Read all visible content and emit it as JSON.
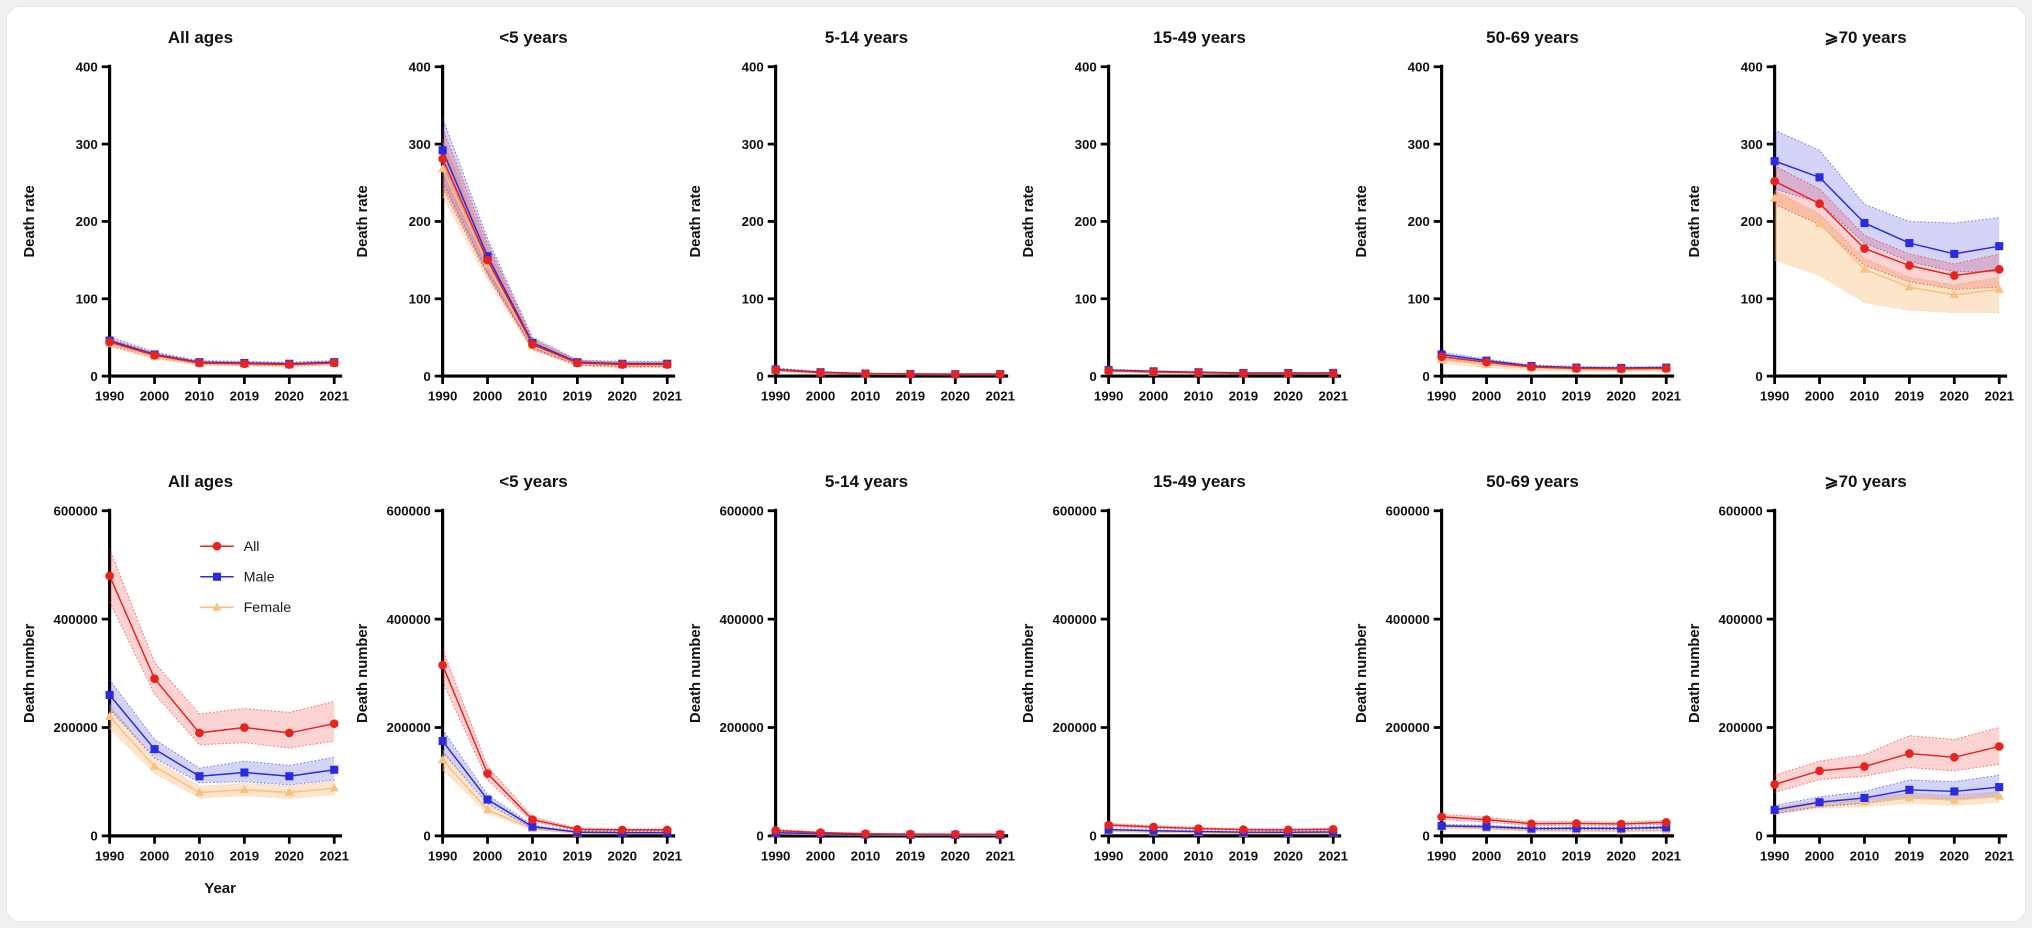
{
  "figure": {
    "xlabel": "Year",
    "x_categories": [
      "1990",
      "2000",
      "2010",
      "2019",
      "2020",
      "2021"
    ],
    "legend": [
      {
        "label": "All",
        "color": "#e8231f",
        "marker": "circle"
      },
      {
        "label": "Male",
        "color": "#2a2ae0",
        "marker": "square"
      },
      {
        "label": "Female",
        "color": "#f9c083",
        "marker": "triangle"
      }
    ],
    "rows": [
      {
        "ylabel": "Death rate",
        "ymax": 400,
        "yticks": [
          "400",
          "300",
          "200",
          "100",
          "0"
        ]
      },
      {
        "ylabel": "Death number",
        "ymax": 600000,
        "yticks": [
          "600000",
          "400000",
          "200000",
          "0"
        ]
      }
    ]
  },
  "chart_data": [
    {
      "type": "line",
      "title": "All ages",
      "row": 0,
      "series": [
        {
          "name": "All",
          "values": [
            44,
            27,
            17,
            16,
            15,
            17
          ],
          "hi": [
            48,
            30,
            19,
            18,
            17,
            19
          ],
          "lo": [
            40,
            24,
            15,
            14,
            13,
            15
          ]
        },
        {
          "name": "Male",
          "values": [
            46,
            28,
            18,
            17,
            16,
            18
          ],
          "hi": [
            51,
            31,
            20,
            19,
            18,
            20
          ],
          "lo": [
            41,
            25,
            16,
            15,
            14,
            16
          ]
        },
        {
          "name": "Female",
          "values": [
            42,
            25,
            16,
            15,
            14,
            16
          ],
          "hi": [
            46,
            28,
            18,
            17,
            16,
            18
          ],
          "lo": [
            38,
            22,
            14,
            13,
            12,
            14
          ]
        }
      ]
    },
    {
      "type": "line",
      "title": "<5 years",
      "row": 0,
      "series": [
        {
          "name": "All",
          "values": [
            281,
            150,
            41,
            17,
            15,
            15
          ],
          "hi": [
            320,
            172,
            48,
            20,
            18,
            18
          ],
          "lo": [
            243,
            130,
            35,
            14,
            12,
            12
          ]
        },
        {
          "name": "Male",
          "values": [
            292,
            155,
            43,
            18,
            16,
            16
          ],
          "hi": [
            334,
            178,
            50,
            21,
            19,
            19
          ],
          "lo": [
            250,
            133,
            36,
            15,
            13,
            13
          ]
        },
        {
          "name": "Female",
          "values": [
            268,
            144,
            39,
            16,
            14,
            14
          ],
          "hi": [
            306,
            166,
            46,
            19,
            17,
            17
          ],
          "lo": [
            232,
            124,
            33,
            13,
            11,
            11
          ]
        }
      ]
    },
    {
      "type": "line",
      "title": "5-14 years",
      "row": 0,
      "series": [
        {
          "name": "All",
          "values": [
            8,
            4.5,
            3,
            2.5,
            2.3,
            2.4
          ],
          "hi": [
            10,
            5.5,
            3.7,
            3.1,
            2.9,
            3
          ],
          "lo": [
            6.5,
            3.6,
            2.4,
            2,
            1.8,
            1.9
          ]
        },
        {
          "name": "Male",
          "values": [
            8.5,
            5,
            3.3,
            2.7,
            2.5,
            2.6
          ],
          "hi": [
            10.5,
            6,
            4,
            3.3,
            3.1,
            3.2
          ],
          "lo": [
            6.8,
            4,
            2.6,
            2.2,
            2,
            2.1
          ]
        },
        {
          "name": "Female",
          "values": [
            7,
            4,
            2.7,
            2.2,
            2,
            2.1
          ],
          "hi": [
            8.7,
            5,
            3.4,
            2.7,
            2.5,
            2.6
          ],
          "lo": [
            5.6,
            3.2,
            2.2,
            1.8,
            1.6,
            1.7
          ]
        }
      ]
    },
    {
      "type": "line",
      "title": "15-49 years",
      "row": 0,
      "series": [
        {
          "name": "All",
          "values": [
            7,
            5.5,
            4.5,
            3.5,
            3.5,
            3.6
          ],
          "hi": [
            8,
            6.3,
            5.2,
            4,
            4,
            4.1
          ],
          "lo": [
            6,
            4.7,
            3.8,
            3,
            3,
            3.1
          ]
        },
        {
          "name": "Male",
          "values": [
            7.8,
            6.2,
            5,
            4,
            4,
            4.1
          ],
          "hi": [
            9,
            7.1,
            5.8,
            4.6,
            4.6,
            4.7
          ],
          "lo": [
            6.6,
            5.3,
            4.3,
            3.4,
            3.4,
            3.5
          ]
        },
        {
          "name": "Female",
          "values": [
            6.2,
            4.8,
            3.9,
            3,
            3,
            3.1
          ],
          "hi": [
            7.1,
            5.5,
            4.5,
            3.5,
            3.5,
            3.6
          ],
          "lo": [
            5.3,
            4.1,
            3.3,
            2.6,
            2.6,
            2.6
          ]
        }
      ]
    },
    {
      "type": "line",
      "title": "50-69 years",
      "row": 0,
      "series": [
        {
          "name": "All",
          "values": [
            25,
            18,
            12,
            10,
            9.5,
            10
          ],
          "hi": [
            28,
            20,
            13.5,
            11.5,
            11,
            11.5
          ],
          "lo": [
            22,
            16,
            10.5,
            8.5,
            8,
            8.5
          ]
        },
        {
          "name": "Male",
          "values": [
            28,
            20,
            13,
            11,
            10.5,
            11
          ],
          "hi": [
            31,
            22,
            14.5,
            12.5,
            12,
            12.5
          ],
          "lo": [
            25,
            18,
            11.5,
            9.5,
            9,
            9.5
          ]
        },
        {
          "name": "Female",
          "values": [
            21,
            15,
            10,
            8.5,
            8,
            8.5
          ],
          "hi": [
            24,
            17,
            11.5,
            10,
            9.5,
            10
          ],
          "lo": [
            16,
            11,
            7.5,
            6.5,
            6,
            6.5
          ]
        }
      ]
    },
    {
      "type": "line",
      "title": "⩾70 years",
      "row": 0,
      "series": [
        {
          "name": "All",
          "values": [
            252,
            223,
            165,
            143,
            130,
            138
          ],
          "hi": [
            272,
            242,
            182,
            158,
            145,
            158
          ],
          "lo": [
            222,
            196,
            143,
            122,
            112,
            115
          ]
        },
        {
          "name": "Male",
          "values": [
            278,
            257,
            198,
            172,
            158,
            168
          ],
          "hi": [
            318,
            292,
            222,
            200,
            198,
            205
          ],
          "lo": [
            242,
            224,
            172,
            148,
            135,
            135
          ]
        },
        {
          "name": "Female",
          "values": [
            230,
            197,
            138,
            115,
            105,
            112
          ],
          "hi": [
            240,
            210,
            152,
            128,
            118,
            128
          ],
          "lo": [
            150,
            130,
            95,
            85,
            82,
            82
          ]
        }
      ]
    },
    {
      "type": "line",
      "title": "All ages",
      "row": 1,
      "legend": true,
      "series": [
        {
          "name": "All",
          "values": [
            480000,
            290000,
            190000,
            200000,
            190000,
            207000
          ],
          "hi": [
            530000,
            320000,
            225000,
            235000,
            228000,
            248000
          ],
          "lo": [
            432000,
            262000,
            168000,
            172000,
            162000,
            175000
          ]
        },
        {
          "name": "Male",
          "values": [
            260000,
            160000,
            110000,
            117000,
            110000,
            122000
          ],
          "hi": [
            288000,
            178000,
            125000,
            138000,
            130000,
            145000
          ],
          "lo": [
            234000,
            144000,
            98000,
            100000,
            94000,
            103000
          ]
        },
        {
          "name": "Female",
          "values": [
            220000,
            128000,
            80000,
            85000,
            80000,
            88000
          ],
          "hi": [
            242000,
            142000,
            92000,
            97000,
            92000,
            101000
          ],
          "lo": [
            198000,
            115000,
            70000,
            74000,
            69000,
            76000
          ]
        }
      ]
    },
    {
      "type": "line",
      "title": "<5 years",
      "row": 1,
      "series": [
        {
          "name": "All",
          "values": [
            315000,
            115000,
            30000,
            12000,
            11000,
            11000
          ],
          "hi": [
            345000,
            128000,
            35000,
            14000,
            13000,
            13000
          ],
          "lo": [
            285000,
            103000,
            26000,
            10000,
            9000,
            9000
          ]
        },
        {
          "name": "Male",
          "values": [
            175000,
            67000,
            17000,
            7000,
            6000,
            6000
          ],
          "hi": [
            196000,
            76000,
            20000,
            8500,
            7500,
            7500
          ],
          "lo": [
            155000,
            59000,
            14000,
            5500,
            5000,
            5000
          ]
        },
        {
          "name": "Female",
          "values": [
            140000,
            48000,
            13000,
            5000,
            5000,
            5000
          ],
          "hi": [
            158000,
            56000,
            16000,
            6500,
            6000,
            6000
          ],
          "lo": [
            122000,
            41000,
            11000,
            4000,
            4000,
            4000
          ]
        }
      ]
    },
    {
      "type": "line",
      "title": "5-14 years",
      "row": 1,
      "series": [
        {
          "name": "All",
          "values": [
            10000,
            6000,
            4000,
            3200,
            3000,
            3100
          ],
          "hi": [
            12000,
            7200,
            4800,
            3900,
            3600,
            3700
          ],
          "lo": [
            8000,
            4800,
            3200,
            2600,
            2400,
            2500
          ]
        },
        {
          "name": "Male",
          "values": [
            6000,
            3600,
            2500,
            2000,
            1900,
            2000
          ],
          "hi": [
            7200,
            4300,
            3000,
            2400,
            2300,
            2400
          ],
          "lo": [
            4800,
            2900,
            2000,
            1600,
            1500,
            1600
          ]
        },
        {
          "name": "Female",
          "values": [
            4500,
            2600,
            1800,
            1400,
            1350,
            1400
          ],
          "hi": [
            5400,
            3100,
            2200,
            1700,
            1600,
            1700
          ],
          "lo": [
            3600,
            2100,
            1450,
            1100,
            1050,
            1100
          ]
        }
      ]
    },
    {
      "type": "line",
      "title": "15-49 years",
      "row": 1,
      "series": [
        {
          "name": "All",
          "values": [
            20000,
            16500,
            13500,
            11500,
            11200,
            12000
          ],
          "hi": [
            23000,
            19000,
            15500,
            13200,
            12900,
            13800
          ],
          "lo": [
            17000,
            14000,
            11500,
            9800,
            9500,
            10200
          ]
        },
        {
          "name": "Male",
          "values": [
            11500,
            9500,
            8000,
            6800,
            6600,
            7100
          ],
          "hi": [
            13200,
            10900,
            9200,
            7800,
            7600,
            8200
          ],
          "lo": [
            9800,
            8100,
            6800,
            5800,
            5600,
            6000
          ]
        },
        {
          "name": "Female",
          "values": [
            8700,
            7100,
            5900,
            4900,
            4800,
            5200
          ],
          "hi": [
            10000,
            8200,
            6800,
            5600,
            5500,
            6000
          ],
          "lo": [
            7400,
            6000,
            5000,
            4200,
            4100,
            4400
          ]
        }
      ]
    },
    {
      "type": "line",
      "title": "50-69 years",
      "row": 1,
      "series": [
        {
          "name": "All",
          "values": [
            35000,
            30000,
            22500,
            23000,
            22000,
            25000
          ],
          "hi": [
            40000,
            34500,
            26000,
            26500,
            25300,
            28800
          ],
          "lo": [
            30000,
            25500,
            19000,
            19500,
            18700,
            21200
          ]
        },
        {
          "name": "Male",
          "values": [
            18500,
            17000,
            13500,
            14000,
            13700,
            15500
          ],
          "hi": [
            21300,
            19600,
            15500,
            16100,
            15800,
            17800
          ],
          "lo": [
            15700,
            14400,
            11500,
            11900,
            11600,
            13200
          ]
        },
        {
          "name": "Female",
          "values": [
            16000,
            13500,
            9800,
            9500,
            9000,
            10000
          ],
          "hi": [
            18400,
            15500,
            11300,
            10900,
            10400,
            11500
          ],
          "lo": [
            13600,
            11500,
            8300,
            8100,
            7600,
            8500
          ]
        }
      ]
    },
    {
      "type": "line",
      "title": "⩾70 years",
      "row": 1,
      "series": [
        {
          "name": "All",
          "values": [
            95000,
            120000,
            128000,
            152000,
            145000,
            165000
          ],
          "hi": [
            112000,
            138000,
            150000,
            185000,
            178000,
            200000
          ],
          "lo": [
            80000,
            104000,
            110000,
            126000,
            120000,
            132000
          ]
        },
        {
          "name": "Male",
          "values": [
            48000,
            62000,
            70000,
            85000,
            82000,
            90000
          ],
          "hi": [
            56000,
            72000,
            82000,
            103000,
            100000,
            112000
          ],
          "lo": [
            41000,
            54000,
            60000,
            70000,
            67000,
            73000
          ]
        },
        {
          "name": "Female",
          "values": [
            46000,
            58000,
            62000,
            70000,
            66000,
            73000
          ],
          "hi": [
            52000,
            65000,
            70000,
            79000,
            75000,
            82000
          ],
          "lo": [
            40000,
            51000,
            54000,
            60000,
            56000,
            62000
          ]
        }
      ]
    }
  ]
}
